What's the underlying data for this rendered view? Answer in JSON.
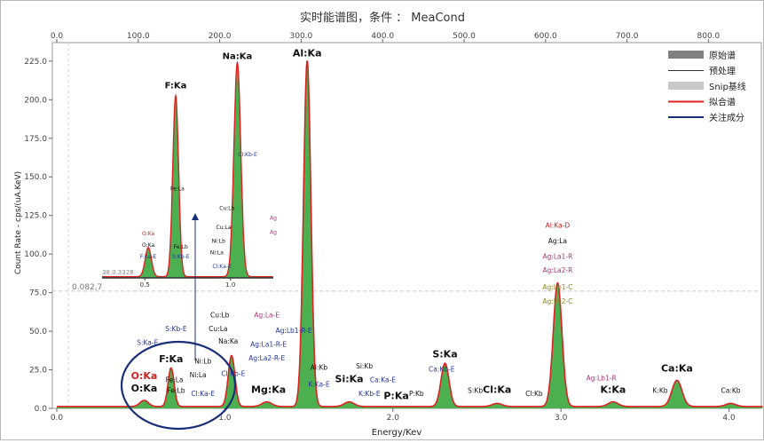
{
  "title": "实时能谱图，条件  ：  MeaCond",
  "chart_data": {
    "type": "area",
    "xlabel": "Energy/Kev",
    "ylabel": "Count Rate - cps/(uA.KeV)",
    "xlim": [
      0,
      4.2
    ],
    "ylim": [
      0,
      237
    ],
    "bottom_ticks": [
      0.0,
      1.0,
      2.0,
      3.0,
      4.0
    ],
    "top_ticks": [
      0.0,
      100.0,
      200.0,
      300.0,
      400.0,
      500.0,
      600.0,
      700.0,
      800.0
    ],
    "top_tick_labels": [
      "0.0",
      "100.0",
      "200.0",
      "300.0",
      "400.0",
      "500.0",
      "600.0",
      "700.0",
      "800.0"
    ],
    "y_ticks": [
      0,
      25,
      50,
      75,
      100,
      125,
      150,
      175,
      200,
      225
    ],
    "y_tick_labels": [
      "0.0",
      "25.0",
      "50.0",
      "75.0",
      "100.0",
      "125.0",
      "150.0",
      "175.0",
      "200.0",
      "225.0"
    ],
    "bottom_tick_labels": [
      "0.0",
      "1.0",
      "2.0",
      "3.0",
      "4.0"
    ],
    "reference_line": {
      "y": 76,
      "label": "0.082,7"
    },
    "peaks": [
      {
        "x": 0.52,
        "height": 4,
        "width": 0.025
      },
      {
        "x": 0.68,
        "height": 25,
        "width": 0.018
      },
      {
        "x": 1.04,
        "height": 33,
        "width": 0.02
      },
      {
        "x": 1.25,
        "height": 3,
        "width": 0.03
      },
      {
        "x": 1.49,
        "height": 224,
        "width": 0.022
      },
      {
        "x": 1.74,
        "height": 3,
        "width": 0.03
      },
      {
        "x": 2.31,
        "height": 28,
        "width": 0.024
      },
      {
        "x": 2.62,
        "height": 2,
        "width": 0.03
      },
      {
        "x": 2.98,
        "height": 80,
        "width": 0.026
      },
      {
        "x": 3.31,
        "height": 3,
        "width": 0.03
      },
      {
        "x": 3.69,
        "height": 17,
        "width": 0.03
      },
      {
        "x": 4.01,
        "height": 2,
        "width": 0.03
      }
    ],
    "inset": {
      "label_coord": "38,0.3328",
      "ticks": [
        0.5,
        1.0
      ],
      "tick_labels": [
        "0.5",
        "1.0"
      ],
      "xlim": [
        0.25,
        1.25
      ],
      "ymax": 230,
      "peaks": [
        {
          "x": 0.52,
          "height": 30,
          "width": 0.018
        },
        {
          "x": 0.68,
          "height": 186,
          "width": 0.017
        },
        {
          "x": 1.04,
          "height": 220,
          "width": 0.02
        }
      ],
      "labels": [
        {
          "text": "F:Ka",
          "x": 0.68,
          "y": 195,
          "color": "#111111",
          "bold": true
        },
        {
          "text": "Na:Ka",
          "x": 1.04,
          "y": 225,
          "color": "#111111",
          "bold": true
        },
        {
          "text": "O:Ka",
          "x": 0.52,
          "y": 44,
          "color": "#cc2222"
        },
        {
          "text": "O:Ka",
          "x": 0.52,
          "y": 32,
          "color": "#111111"
        },
        {
          "text": "F:Ka-E",
          "x": 0.52,
          "y": 20,
          "color": "#223399"
        },
        {
          "text": "Fe:La",
          "x": 0.69,
          "y": 90,
          "color": "#111111"
        },
        {
          "text": "Fe:Lb",
          "x": 0.71,
          "y": 30,
          "color": "#111111"
        },
        {
          "text": "S:Kb-E",
          "x": 0.71,
          "y": 20,
          "color": "#223399"
        },
        {
          "text": "Cl:Kb-E",
          "x": 1.1,
          "y": 125,
          "color": "#223399"
        },
        {
          "text": "Cu:Lb",
          "x": 0.98,
          "y": 70,
          "color": "#111111"
        },
        {
          "text": "Cu:La",
          "x": 0.96,
          "y": 50,
          "color": "#111111"
        },
        {
          "text": "Ni:Lb",
          "x": 0.93,
          "y": 36,
          "color": "#111111"
        },
        {
          "text": "Ni:La",
          "x": 0.92,
          "y": 24,
          "color": "#111111"
        },
        {
          "text": "Cl:Ka-E",
          "x": 0.95,
          "y": 10,
          "color": "#223399"
        },
        {
          "text": "Ag",
          "x": 1.25,
          "y": 60,
          "color": "#aa3377"
        },
        {
          "text": "Ag",
          "x": 1.25,
          "y": 45,
          "color": "#aa3377"
        }
      ]
    },
    "labels": [
      {
        "text": "Na:Ka",
        "x": 1.04,
        "y": 225,
        "color": "#111111",
        "bold": true,
        "inset_label": true
      },
      {
        "text": "Al:Ka",
        "x": 1.49,
        "y": 228,
        "color": "#111111",
        "bold": true
      },
      {
        "text": "F:Ka",
        "x": 0.68,
        "y": 30,
        "color": "#111111",
        "bold": true
      },
      {
        "text": "O:Ka",
        "x": 0.52,
        "y": 19,
        "color": "#cc2222",
        "bold": true
      },
      {
        "text": "O:Ka",
        "x": 0.52,
        "y": 11,
        "color": "#111111",
        "bold": true
      },
      {
        "text": "Mg:Ka",
        "x": 1.26,
        "y": 10,
        "color": "#111111",
        "bold": true
      },
      {
        "text": "Si:Ka",
        "x": 1.74,
        "y": 17,
        "color": "#111111",
        "bold": true
      },
      {
        "text": "P:Ka",
        "x": 2.02,
        "y": 6,
        "color": "#111111",
        "bold": true
      },
      {
        "text": "S:Ka",
        "x": 2.31,
        "y": 33,
        "color": "#111111",
        "bold": true
      },
      {
        "text": "Cl:Ka",
        "x": 2.62,
        "y": 10,
        "color": "#111111",
        "bold": true
      },
      {
        "text": "K:Ka",
        "x": 3.31,
        "y": 10,
        "color": "#111111",
        "bold": true
      },
      {
        "text": "Ca:Ka",
        "x": 3.69,
        "y": 24,
        "color": "#111111",
        "bold": true
      },
      {
        "text": "Fe:La",
        "x": 0.7,
        "y": 17,
        "color": "#111111"
      },
      {
        "text": "Fe:Lb",
        "x": 0.71,
        "y": 10,
        "color": "#111111"
      },
      {
        "text": "S:Ka-E",
        "x": 0.54,
        "y": 41,
        "color": "#223399"
      },
      {
        "text": "S:Kb-E",
        "x": 0.71,
        "y": 50,
        "color": "#223399"
      },
      {
        "text": "Cu:Lb",
        "x": 0.97,
        "y": 59,
        "color": "#111111"
      },
      {
        "text": "Cu:La",
        "x": 0.96,
        "y": 50,
        "color": "#111111"
      },
      {
        "text": "Na:Ka",
        "x": 1.02,
        "y": 42,
        "color": "#111111"
      },
      {
        "text": "Ni:Lb",
        "x": 0.87,
        "y": 29,
        "color": "#111111"
      },
      {
        "text": "Ni:La",
        "x": 0.84,
        "y": 20,
        "color": "#111111"
      },
      {
        "text": "Cl:Ka-E",
        "x": 0.87,
        "y": 8,
        "color": "#223399"
      },
      {
        "text": "Cl:Kb-E",
        "x": 1.05,
        "y": 21,
        "color": "#223399"
      },
      {
        "text": "Ag:La-E",
        "x": 1.25,
        "y": 59,
        "color": "#aa3377"
      },
      {
        "text": "Ag:Lb1-R-E",
        "x": 1.41,
        "y": 49,
        "color": "#223399"
      },
      {
        "text": "Ag:La1-R-E",
        "x": 1.26,
        "y": 40,
        "color": "#223399"
      },
      {
        "text": "Ag:La2-R-E",
        "x": 1.25,
        "y": 31,
        "color": "#223399"
      },
      {
        "text": "Al:Kb",
        "x": 1.56,
        "y": 25,
        "color": "#111111"
      },
      {
        "text": "K:Ka-E",
        "x": 1.56,
        "y": 14,
        "color": "#223399"
      },
      {
        "text": "Si:Kb",
        "x": 1.83,
        "y": 26,
        "color": "#111111"
      },
      {
        "text": "Ca:Ka-E",
        "x": 1.94,
        "y": 17,
        "color": "#223399"
      },
      {
        "text": "K:Kb-E",
        "x": 1.86,
        "y": 8,
        "color": "#223399"
      },
      {
        "text": "P:Kb",
        "x": 2.14,
        "y": 8,
        "color": "#111111"
      },
      {
        "text": "Ca:Kb-E",
        "x": 2.29,
        "y": 24,
        "color": "#223399"
      },
      {
        "text": "S:Kb",
        "x": 2.49,
        "y": 10,
        "color": "#111111"
      },
      {
        "text": "Cl:Kb",
        "x": 2.84,
        "y": 8,
        "color": "#111111"
      },
      {
        "text": "Al:Ka-D",
        "x": 2.98,
        "y": 117,
        "color": "#cc2222"
      },
      {
        "text": "Ag:La",
        "x": 2.98,
        "y": 107,
        "color": "#111111"
      },
      {
        "text": "Ag:La1-R",
        "x": 2.98,
        "y": 97,
        "color": "#aa3377"
      },
      {
        "text": "Ag:La2-R",
        "x": 2.98,
        "y": 88,
        "color": "#aa3377"
      },
      {
        "text": "Ag:Lb1-C",
        "x": 2.98,
        "y": 77,
        "color": "#8a8a20"
      },
      {
        "text": "Ag:Lb2-C",
        "x": 2.98,
        "y": 68,
        "color": "#8a8a20"
      },
      {
        "text": "Ag:Lb1-R",
        "x": 3.24,
        "y": 18,
        "color": "#aa3377"
      },
      {
        "text": "K:Kb",
        "x": 3.59,
        "y": 10,
        "color": "#111111"
      },
      {
        "text": "Ca:Kb",
        "x": 4.01,
        "y": 10,
        "color": "#111111"
      }
    ]
  },
  "legend": [
    {
      "label": "原始谱",
      "kind": "box",
      "color": "#808080"
    },
    {
      "label": "预处理",
      "kind": "line",
      "color": "#333333"
    },
    {
      "label": "Snip基线",
      "kind": "box",
      "color": "#c8c8c8"
    },
    {
      "label": "拟合谱",
      "kind": "line",
      "color": "#dd2222"
    },
    {
      "label": "关注成分",
      "kind": "line",
      "color": "#1a2f7a"
    }
  ],
  "colors": {
    "fill": "#4caf50",
    "fit_line": "#dd2222",
    "highlight": "#1a2f7a",
    "axis": "#888888"
  }
}
